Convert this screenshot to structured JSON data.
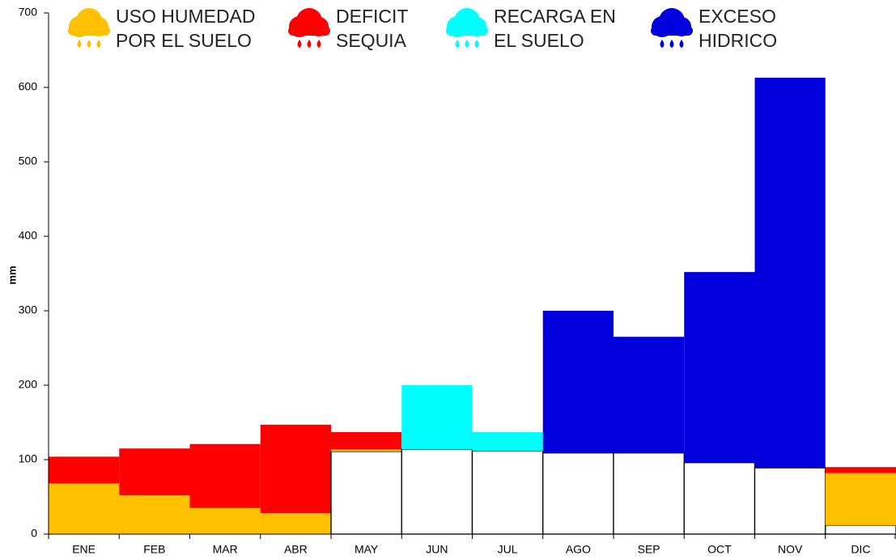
{
  "chart_data": {
    "type": "stacked_bar",
    "y_label": "mm",
    "categories": [
      "ENE",
      "FEB",
      "MAR",
      "ABR",
      "MAY",
      "JUN",
      "JUL",
      "AGO",
      "SEP",
      "OCT",
      "NOV",
      "DIC"
    ],
    "series": [
      {
        "color": "#ffffff",
        "values": [
          0,
          0,
          0,
          0,
          111,
          114,
          112,
          109,
          109,
          96,
          89,
          12
        ]
      },
      {
        "name": "USO HUMEDAD\nPOR EL SUELO",
        "color": "#ffc000",
        "values": [
          68,
          52,
          35,
          28,
          3,
          0,
          0,
          0,
          0,
          0,
          0,
          70
        ]
      },
      {
        "name": "DEFICIT\nSEQUIA",
        "color": "#ff0000",
        "values": [
          36,
          63,
          86,
          119,
          23,
          0,
          0,
          0,
          0,
          0,
          0,
          8
        ]
      },
      {
        "name": "RECARGA EN\nEL SUELO",
        "color": "#00ffff",
        "values": [
          0,
          0,
          0,
          0,
          0,
          86,
          25,
          0,
          0,
          0,
          0,
          0
        ]
      },
      {
        "name": "EXCESO\nHIDRICO",
        "color": "#0000dd",
        "values": [
          0,
          0,
          0,
          0,
          0,
          0,
          0,
          191,
          156,
          256,
          524,
          0
        ]
      }
    ],
    "ylim": [
      0,
      700
    ],
    "yticks": [
      0,
      100,
      200,
      300,
      400,
      500,
      600,
      700
    ],
    "grid": false
  }
}
